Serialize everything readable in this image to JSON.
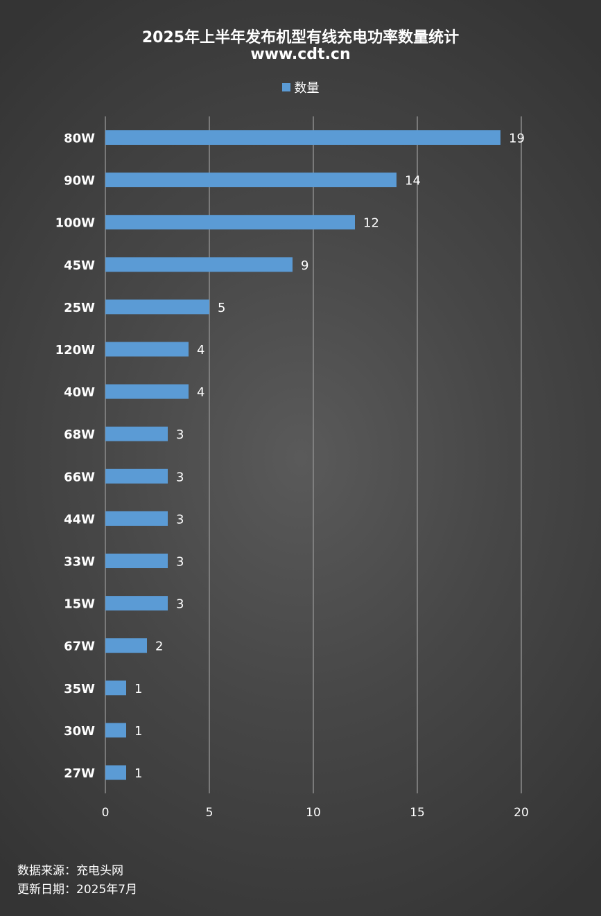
{
  "chart_data": {
    "type": "bar",
    "orientation": "horizontal",
    "title": "2025年上半年发布机型有线充电功率数量统计",
    "subtitle": "www.cdt.cn",
    "categories": [
      "80W",
      "90W",
      "100W",
      "45W",
      "25W",
      "120W",
      "40W",
      "68W",
      "66W",
      "44W",
      "33W",
      "15W",
      "67W",
      "35W",
      "30W",
      "27W"
    ],
    "series": [
      {
        "name": "数量",
        "values": [
          19,
          14,
          12,
          9,
          5,
          4,
          4,
          3,
          3,
          3,
          3,
          3,
          2,
          1,
          1,
          1
        ],
        "color": "#5b9bd5"
      }
    ],
    "xlim": [
      0,
      20
    ],
    "x_ticks": [
      0,
      5,
      10,
      15,
      20
    ],
    "grid": "vertical",
    "legend_position": "top",
    "data_labels": true,
    "gridline_color": "#8c8c8c"
  },
  "footer": {
    "source": "数据来源：充电头网",
    "date": "更新日期：2025年7月"
  }
}
